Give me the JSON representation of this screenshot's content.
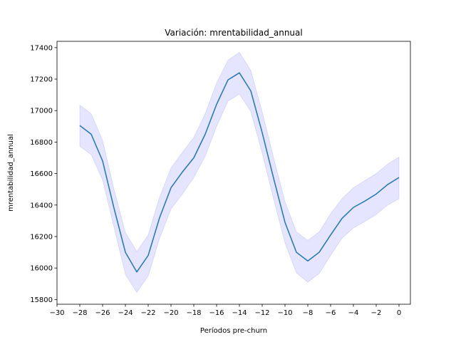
{
  "chart_data": {
    "type": "line",
    "title": "Variación: mrentabilidad_annual",
    "xlabel": "Períodos pre-churn",
    "ylabel": "mrentabilidad_annual",
    "xlim": [
      -30,
      1
    ],
    "ylim": [
      15770,
      17440
    ],
    "xticks": [
      -30,
      -28,
      -26,
      -24,
      -22,
      -20,
      -18,
      -16,
      -14,
      -12,
      -10,
      -8,
      -6,
      -4,
      -2,
      0
    ],
    "xtick_labels": [
      "−30",
      "−28",
      "−26",
      "−24",
      "−22",
      "−20",
      "−18",
      "−16",
      "−14",
      "−12",
      "−10",
      "−8",
      "−6",
      "−4",
      "−2",
      "0"
    ],
    "yticks": [
      15800,
      16000,
      16200,
      16400,
      16600,
      16800,
      17000,
      17200,
      17400
    ],
    "ytick_labels": [
      "15800",
      "16000",
      "16200",
      "16400",
      "16600",
      "16800",
      "17000",
      "17200",
      "17400"
    ],
    "grid": false,
    "colors": {
      "line": "#1f77b4",
      "band": "#0000ff"
    },
    "series": [
      {
        "x": [
          -28,
          -27,
          -26,
          -25,
          -24,
          -23,
          -22,
          -21,
          -20,
          -19,
          -18,
          -17,
          -16,
          -15,
          -14,
          -13,
          -12,
          -11,
          -10,
          -9,
          -8,
          -7,
          -6,
          -5,
          -4,
          -3,
          -2,
          -1,
          0
        ],
        "values": [
          16905,
          16850,
          16680,
          16380,
          16100,
          15975,
          16080,
          16320,
          16510,
          16610,
          16700,
          16850,
          17040,
          17195,
          17240,
          17125,
          16860,
          16570,
          16290,
          16100,
          16045,
          16100,
          16210,
          16315,
          16385,
          16425,
          16470,
          16530,
          16575
        ],
        "lower": [
          16775,
          16720,
          16560,
          16260,
          15960,
          15845,
          15950,
          16190,
          16375,
          16470,
          16575,
          16710,
          16900,
          17060,
          17105,
          16995,
          16730,
          16440,
          16160,
          15970,
          15910,
          15965,
          16080,
          16190,
          16255,
          16295,
          16340,
          16400,
          16440
        ],
        "upper": [
          17035,
          16980,
          16810,
          16500,
          16225,
          16105,
          16210,
          16450,
          16635,
          16735,
          16830,
          16980,
          17175,
          17320,
          17370,
          17255,
          16990,
          16700,
          16420,
          16230,
          16175,
          16230,
          16345,
          16440,
          16510,
          16555,
          16600,
          16660,
          16705
        ]
      }
    ]
  }
}
